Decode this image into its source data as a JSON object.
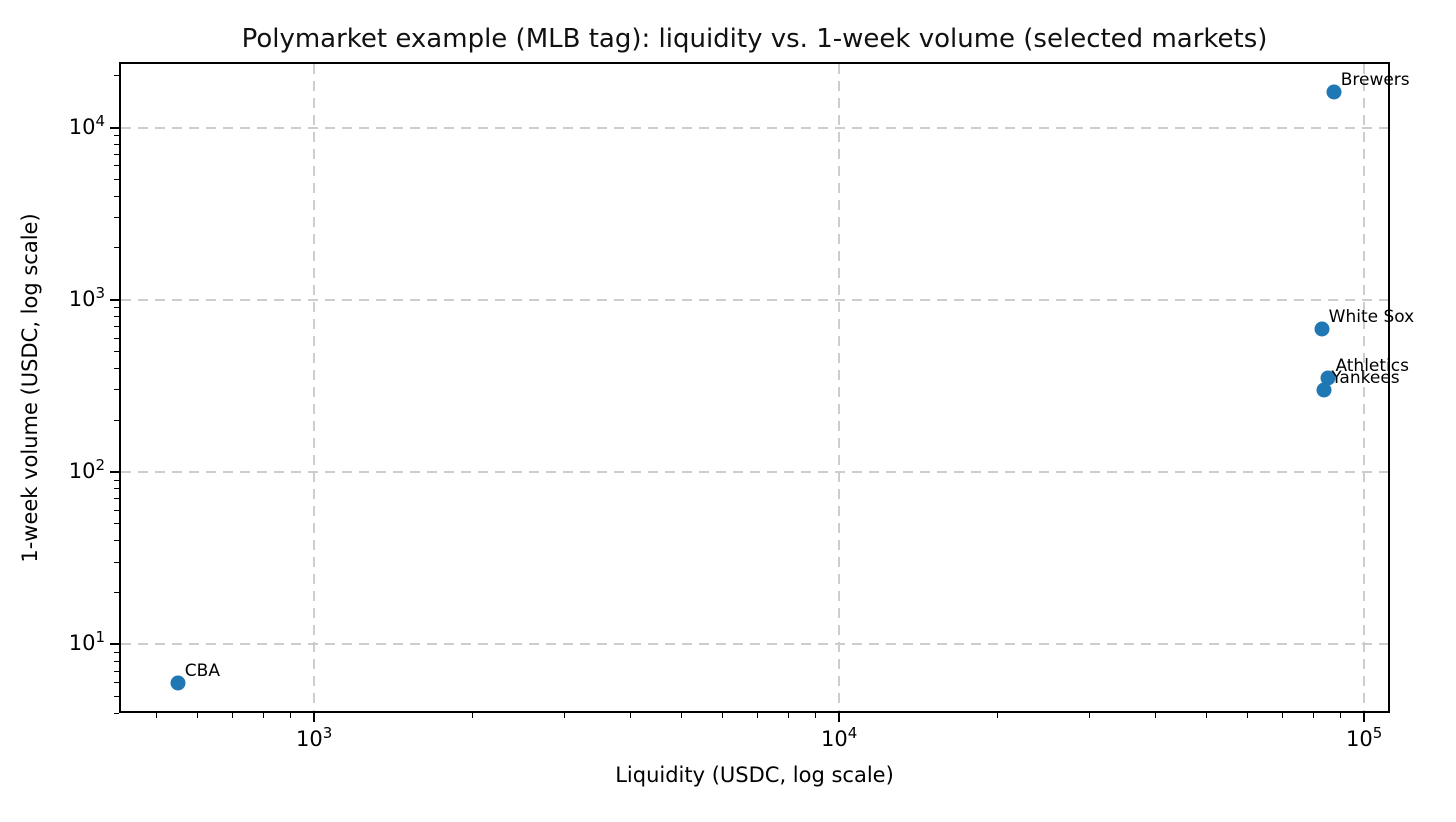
{
  "chart_data": {
    "type": "scatter",
    "title": "Polymarket example (MLB tag): liquidity vs. 1-week volume (selected markets)",
    "xlabel": "Liquidity (USDC, log scale)",
    "ylabel": "1-week volume (USDC, log scale)",
    "x_scale": "log",
    "y_scale": "log",
    "xlim": [
      425,
      112000
    ],
    "ylim": [
      4,
      24000
    ],
    "tick_base": "10",
    "x_major_tick_exponents": [
      3,
      4,
      5
    ],
    "y_major_tick_exponents": [
      1,
      2,
      3,
      4
    ],
    "grid": {
      "show": true,
      "style": "dashed",
      "color": "#cdcdcd",
      "on": "major"
    },
    "legend": false,
    "marker": {
      "shape": "circle",
      "color": "#1f77b4"
    },
    "points": [
      {
        "label": "Brewers",
        "liquidity_usdc": 87500,
        "week_volume_usdc": 16000
      },
      {
        "label": "White Sox",
        "liquidity_usdc": 83000,
        "week_volume_usdc": 680
      },
      {
        "label": "Athletics",
        "liquidity_usdc": 85500,
        "week_volume_usdc": 350
      },
      {
        "label": "Yankees",
        "liquidity_usdc": 84000,
        "week_volume_usdc": 300
      },
      {
        "label": "CBA",
        "liquidity_usdc": 550,
        "week_volume_usdc": 6
      }
    ]
  }
}
